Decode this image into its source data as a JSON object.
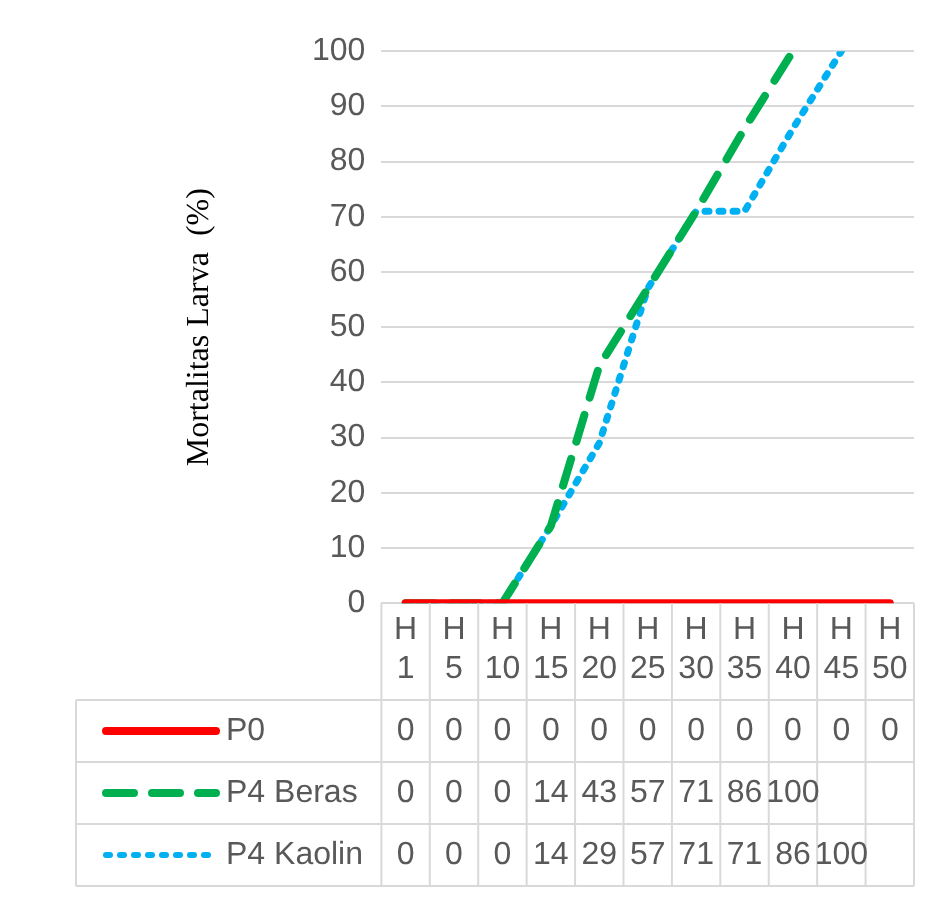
{
  "chart_data": {
    "type": "line",
    "ylabel": "Mortalitas Larva  (%)",
    "categories": [
      "H 1",
      "H 5",
      "H 10",
      "H 15",
      "H 20",
      "H 25",
      "H 30",
      "H 35",
      "H 40",
      "H 45",
      "H 50"
    ],
    "series": [
      {
        "name": "P0",
        "color": "#ff0000",
        "line_style": "solid",
        "values": [
          0,
          0,
          0,
          0,
          0,
          0,
          0,
          0,
          0,
          0,
          0
        ]
      },
      {
        "name": "P4 Beras",
        "color": "#00b050",
        "line_style": "dashed",
        "values": [
          0,
          0,
          0,
          14,
          43,
          57,
          71,
          86,
          100,
          null,
          null
        ]
      },
      {
        "name": "P4 Kaolin",
        "color": "#00b0f0",
        "line_style": "dotted",
        "values": [
          0,
          0,
          0,
          14,
          29,
          57,
          71,
          71,
          86,
          100,
          null
        ]
      }
    ],
    "ylim": [
      0,
      100
    ],
    "yticks": [
      0,
      10,
      20,
      30,
      40,
      50,
      60,
      70,
      80,
      90,
      100
    ],
    "grid": "y",
    "legend": "bottom",
    "marker": "none",
    "data_labels": true
  }
}
